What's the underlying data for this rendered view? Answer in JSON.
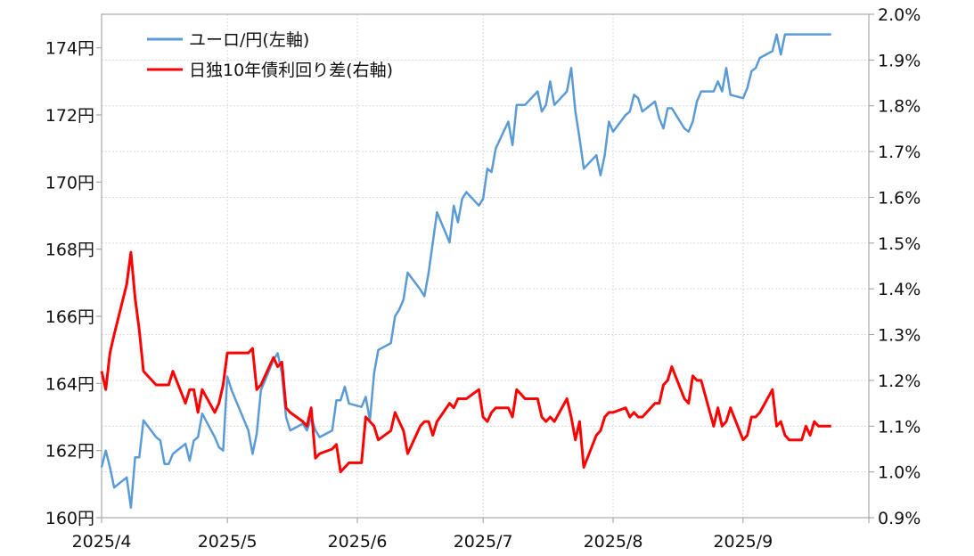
{
  "chart_data": {
    "type": "line",
    "x_tick_labels": [
      "2025/4",
      "2025/5",
      "2025/6",
      "2025/7",
      "2025/8",
      "2025/9"
    ],
    "x_range": [
      "2025-04-01",
      "2025-10-01"
    ],
    "y_left": {
      "ylim": [
        160,
        175
      ],
      "ticks": [
        160,
        162,
        164,
        166,
        168,
        170,
        172,
        174
      ],
      "tick_labels": [
        "160円",
        "162円",
        "164円",
        "166円",
        "168円",
        "170円",
        "172円",
        "174円"
      ]
    },
    "y_right": {
      "ylim": [
        0.9,
        2.0
      ],
      "ticks": [
        0.9,
        1.0,
        1.1,
        1.2,
        1.3,
        1.4,
        1.5,
        1.6,
        1.7,
        1.8,
        1.9,
        2.0
      ],
      "tick_labels": [
        "0.9%",
        "1.0%",
        "1.1%",
        "1.2%",
        "1.3%",
        "1.4%",
        "1.5%",
        "1.6%",
        "1.7%",
        "1.8%",
        "1.9%",
        "2.0%"
      ]
    },
    "grid": true,
    "legend": "top-left",
    "series": [
      {
        "name": "ユーロ/円(左軸)",
        "axis": "left",
        "color": "#5b9bd5",
        "x": [
          "2025-04-01",
          "2025-04-02",
          "2025-04-03",
          "2025-04-04",
          "2025-04-07",
          "2025-04-08",
          "2025-04-09",
          "2025-04-10",
          "2025-04-11",
          "2025-04-14",
          "2025-04-15",
          "2025-04-16",
          "2025-04-17",
          "2025-04-18",
          "2025-04-21",
          "2025-04-22",
          "2025-04-23",
          "2025-04-24",
          "2025-04-25",
          "2025-04-28",
          "2025-04-29",
          "2025-04-30",
          "2025-05-01",
          "2025-05-02",
          "2025-05-06",
          "2025-05-07",
          "2025-05-08",
          "2025-05-09",
          "2025-05-12",
          "2025-05-13",
          "2025-05-14",
          "2025-05-15",
          "2025-05-16",
          "2025-05-19",
          "2025-05-20",
          "2025-05-21",
          "2025-05-22",
          "2025-05-23",
          "2025-05-26",
          "2025-05-27",
          "2025-05-28",
          "2025-05-29",
          "2025-05-30",
          "2025-06-02",
          "2025-06-03",
          "2025-06-04",
          "2025-06-05",
          "2025-06-06",
          "2025-06-09",
          "2025-06-10",
          "2025-06-11",
          "2025-06-12",
          "2025-06-13",
          "2025-06-16",
          "2025-06-17",
          "2025-06-18",
          "2025-06-19",
          "2025-06-20",
          "2025-06-23",
          "2025-06-24",
          "2025-06-25",
          "2025-06-26",
          "2025-06-27",
          "2025-06-30",
          "2025-07-01",
          "2025-07-02",
          "2025-07-03",
          "2025-07-04",
          "2025-07-07",
          "2025-07-08",
          "2025-07-09",
          "2025-07-10",
          "2025-07-11",
          "2025-07-14",
          "2025-07-15",
          "2025-07-16",
          "2025-07-17",
          "2025-07-18",
          "2025-07-21",
          "2025-07-22",
          "2025-07-23",
          "2025-07-24",
          "2025-07-25",
          "2025-07-28",
          "2025-07-29",
          "2025-07-30",
          "2025-07-31",
          "2025-08-01",
          "2025-08-04",
          "2025-08-05",
          "2025-08-06",
          "2025-08-07",
          "2025-08-08",
          "2025-08-11",
          "2025-08-12",
          "2025-08-13",
          "2025-08-14",
          "2025-08-15",
          "2025-08-18",
          "2025-08-19",
          "2025-08-20",
          "2025-08-21",
          "2025-08-22",
          "2025-08-25",
          "2025-08-26",
          "2025-08-27",
          "2025-08-28",
          "2025-08-29",
          "2025-09-01",
          "2025-09-02",
          "2025-09-03",
          "2025-09-04",
          "2025-09-05",
          "2025-09-08",
          "2025-09-09",
          "2025-09-10",
          "2025-09-11",
          "2025-09-12",
          "2025-09-15",
          "2025-09-16",
          "2025-09-17",
          "2025-09-18",
          "2025-09-19",
          "2025-09-22"
        ],
        "values": [
          161.5,
          162.0,
          161.5,
          160.9,
          161.2,
          160.3,
          161.8,
          161.8,
          162.9,
          162.4,
          162.3,
          161.6,
          161.6,
          161.9,
          162.2,
          161.7,
          162.3,
          162.4,
          163.1,
          162.4,
          162.1,
          162.0,
          164.2,
          163.8,
          162.6,
          161.9,
          162.5,
          163.8,
          164.7,
          164.9,
          164.3,
          163.0,
          162.6,
          162.8,
          162.6,
          163.0,
          162.6,
          162.4,
          162.6,
          163.5,
          163.5,
          163.9,
          163.4,
          163.3,
          163.6,
          162.9,
          164.3,
          165.0,
          165.2,
          166.0,
          166.2,
          166.5,
          167.3,
          166.8,
          166.6,
          167.3,
          168.2,
          169.1,
          168.2,
          169.3,
          168.8,
          169.5,
          169.7,
          169.3,
          169.5,
          170.4,
          170.3,
          171.0,
          171.8,
          171.1,
          172.3,
          172.3,
          172.3,
          172.7,
          172.1,
          172.3,
          173.0,
          172.3,
          172.7,
          173.4,
          172.1,
          171.3,
          170.4,
          170.8,
          170.2,
          170.8,
          171.8,
          171.5,
          172.0,
          172.1,
          172.6,
          172.5,
          172.1,
          172.4,
          171.9,
          171.6,
          172.2,
          172.2,
          171.6,
          171.5,
          171.8,
          172.4,
          172.7,
          172.7,
          173.0,
          172.7,
          173.4,
          172.6,
          172.5,
          172.8,
          173.3,
          173.4,
          173.7,
          173.9,
          174.4,
          173.8,
          174.4,
          174.4,
          174.4,
          174.4,
          174.4,
          174.4,
          174.4,
          174.4
        ]
      },
      {
        "name": "日独10年債利回り差(右軸)",
        "axis": "right",
        "color": "#ff0000",
        "x": [
          "2025-04-01",
          "2025-04-02",
          "2025-04-03",
          "2025-04-04",
          "2025-04-07",
          "2025-04-08",
          "2025-04-09",
          "2025-04-10",
          "2025-04-11",
          "2025-04-14",
          "2025-04-15",
          "2025-04-16",
          "2025-04-17",
          "2025-04-18",
          "2025-04-21",
          "2025-04-22",
          "2025-04-23",
          "2025-04-24",
          "2025-04-25",
          "2025-04-28",
          "2025-04-29",
          "2025-04-30",
          "2025-05-01",
          "2025-05-02",
          "2025-05-06",
          "2025-05-07",
          "2025-05-08",
          "2025-05-09",
          "2025-05-12",
          "2025-05-13",
          "2025-05-14",
          "2025-05-15",
          "2025-05-16",
          "2025-05-19",
          "2025-05-20",
          "2025-05-21",
          "2025-05-22",
          "2025-05-23",
          "2025-05-26",
          "2025-05-27",
          "2025-05-28",
          "2025-05-29",
          "2025-05-30",
          "2025-06-02",
          "2025-06-03",
          "2025-06-04",
          "2025-06-05",
          "2025-06-06",
          "2025-06-09",
          "2025-06-10",
          "2025-06-11",
          "2025-06-12",
          "2025-06-13",
          "2025-06-16",
          "2025-06-17",
          "2025-06-18",
          "2025-06-19",
          "2025-06-20",
          "2025-06-23",
          "2025-06-24",
          "2025-06-25",
          "2025-06-26",
          "2025-06-27",
          "2025-06-30",
          "2025-07-01",
          "2025-07-02",
          "2025-07-03",
          "2025-07-04",
          "2025-07-07",
          "2025-07-08",
          "2025-07-09",
          "2025-07-10",
          "2025-07-11",
          "2025-07-14",
          "2025-07-15",
          "2025-07-16",
          "2025-07-17",
          "2025-07-18",
          "2025-07-21",
          "2025-07-22",
          "2025-07-23",
          "2025-07-24",
          "2025-07-25",
          "2025-07-28",
          "2025-07-29",
          "2025-07-30",
          "2025-07-31",
          "2025-08-01",
          "2025-08-04",
          "2025-08-05",
          "2025-08-06",
          "2025-08-07",
          "2025-08-08",
          "2025-08-11",
          "2025-08-12",
          "2025-08-13",
          "2025-08-14",
          "2025-08-15",
          "2025-08-18",
          "2025-08-19",
          "2025-08-20",
          "2025-08-21",
          "2025-08-22",
          "2025-08-25",
          "2025-08-26",
          "2025-08-27",
          "2025-08-28",
          "2025-08-29",
          "2025-09-01",
          "2025-09-02",
          "2025-09-03",
          "2025-09-04",
          "2025-09-05",
          "2025-09-08",
          "2025-09-09",
          "2025-09-10",
          "2025-09-11",
          "2025-09-12",
          "2025-09-15",
          "2025-09-16",
          "2025-09-17",
          "2025-09-18",
          "2025-09-19",
          "2025-09-22"
        ],
        "values": [
          1.22,
          1.18,
          1.26,
          1.3,
          1.41,
          1.48,
          1.38,
          1.31,
          1.22,
          1.19,
          1.19,
          1.19,
          1.19,
          1.22,
          1.15,
          1.18,
          1.18,
          1.13,
          1.18,
          1.13,
          1.15,
          1.19,
          1.26,
          1.26,
          1.26,
          1.27,
          1.18,
          1.19,
          1.25,
          1.23,
          1.24,
          1.14,
          1.13,
          1.11,
          1.1,
          1.14,
          1.03,
          1.04,
          1.05,
          1.06,
          1.0,
          1.01,
          1.02,
          1.02,
          1.12,
          1.11,
          1.1,
          1.07,
          1.09,
          1.13,
          1.11,
          1.09,
          1.04,
          1.1,
          1.11,
          1.11,
          1.08,
          1.11,
          1.15,
          1.14,
          1.16,
          1.16,
          1.16,
          1.18,
          1.12,
          1.11,
          1.13,
          1.14,
          1.14,
          1.12,
          1.18,
          1.17,
          1.16,
          1.16,
          1.12,
          1.11,
          1.12,
          1.11,
          1.16,
          1.12,
          1.07,
          1.11,
          1.01,
          1.08,
          1.09,
          1.12,
          1.13,
          1.13,
          1.14,
          1.12,
          1.13,
          1.12,
          1.12,
          1.15,
          1.15,
          1.19,
          1.2,
          1.23,
          1.16,
          1.15,
          1.21,
          1.2,
          1.2,
          1.1,
          1.14,
          1.1,
          1.11,
          1.14,
          1.07,
          1.08,
          1.12,
          1.12,
          1.13,
          1.18,
          1.1,
          1.11,
          1.08,
          1.07,
          1.07,
          1.1,
          1.08,
          1.11,
          1.1,
          1.1
        ]
      }
    ]
  }
}
